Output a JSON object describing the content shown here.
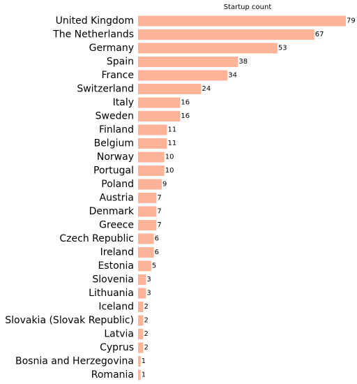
{
  "chart_data": {
    "type": "bar",
    "orientation": "horizontal",
    "title": "Startup count",
    "xlabel": "",
    "ylabel": "",
    "xlim": [
      0,
      79
    ],
    "grid": false,
    "legend": "none",
    "bar_color": "#fdb398",
    "categories": [
      "United Kingdom",
      "The Netherlands",
      "Germany",
      "Spain",
      "France",
      "Switzerland",
      "Italy",
      "Sweden",
      "Finland",
      "Belgium",
      "Norway",
      "Portugal",
      "Poland",
      "Austria",
      "Denmark",
      "Greece",
      "Czech Republic",
      "Ireland",
      "Estonia",
      "Slovenia",
      "Lithuania",
      "Iceland",
      "Slovakia (Slovak Republic)",
      "Latvia",
      "Cyprus",
      "Bosnia and Herzegovina",
      "Romania"
    ],
    "values": [
      79,
      67,
      53,
      38,
      34,
      24,
      16,
      16,
      11,
      11,
      10,
      10,
      9,
      7,
      7,
      7,
      6,
      6,
      5,
      3,
      3,
      2,
      2,
      2,
      2,
      1,
      1
    ]
  }
}
